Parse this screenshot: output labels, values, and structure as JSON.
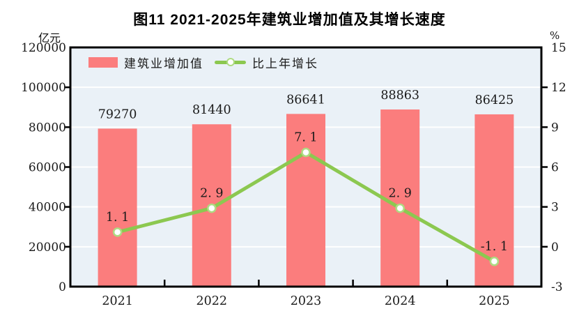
{
  "chart_data": {
    "type": "bar+line",
    "title": "图11  2021-2025年建筑业增加值及其增长速度",
    "categories": [
      "2021",
      "2022",
      "2023",
      "2024",
      "2025"
    ],
    "series": [
      {
        "name": "建筑业增加值",
        "type": "bar",
        "axis": "left",
        "values": [
          79270,
          81440,
          86641,
          88863,
          86425
        ],
        "color": "#FB7D7D"
      },
      {
        "name": "比上年增长",
        "type": "line",
        "axis": "right",
        "values": [
          1.1,
          2.9,
          7.1,
          2.9,
          -1.1
        ],
        "value_labels": [
          "1. 1",
          "2. 9",
          "7. 1",
          "2. 9",
          "-1. 1"
        ],
        "color": "#8CC850",
        "marker": "circle-white-fill"
      }
    ],
    "left_axis": {
      "unit": "亿元",
      "min": 0,
      "max": 120000,
      "ticks": [
        0,
        20000,
        40000,
        60000,
        80000,
        100000,
        120000
      ]
    },
    "right_axis": {
      "unit": "%",
      "min": -3,
      "max": 15,
      "ticks": [
        -3,
        0,
        3,
        6,
        9,
        12,
        15
      ]
    },
    "legend_position": "top-left-inside",
    "grid": true,
    "plot_bg": "#EAF1F7",
    "gridline_color": "#FFFFFF",
    "frame_color": "#000000",
    "text_color": "#1a1a1a"
  }
}
